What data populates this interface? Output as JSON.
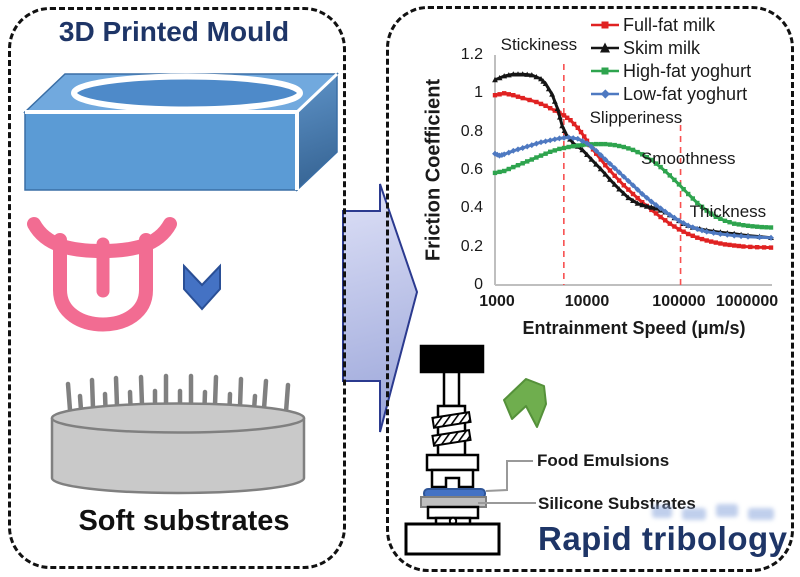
{
  "left_panel": {
    "title": "3D Printed Mould",
    "caption": "Soft substrates"
  },
  "right_panel": {
    "food_label": "Food Emulsions",
    "substrate_label": "Silicone Substrates",
    "caption": "Rapid tribology"
  },
  "icons": {
    "mould": "3d-printed-mould-box",
    "tongue": "tongue-icon",
    "down_chevron": "down-chevron-icon",
    "substrate": "soft-substrate-cylinder",
    "flow_arrow": "right-flow-arrow",
    "tribometer": "tribometer-device",
    "green_arrow": "up-left-green-arrow"
  },
  "colors": {
    "navy_text": "#1e3567",
    "mould_front": "#5b9bd5",
    "mould_top": "#71a9de",
    "tongue_pink": "#f26c92",
    "chevron_blue": "#4472c4",
    "substrate_gray": "#c9c9c9",
    "emulsion_blue": "#4472c4",
    "tray_gray": "#bfbfbf"
  },
  "chart_data": {
    "type": "line",
    "title": "",
    "xlabel": "Entrainment Speed (μm/s)",
    "ylabel": "Friction Coefficient",
    "x_scale": "log",
    "xlim": [
      1000,
      1000000
    ],
    "ylim": [
      0,
      1.2
    ],
    "x_ticks": [
      "1000",
      "10000",
      "100000",
      "1000000"
    ],
    "y_ticks": [
      "0",
      "0.2",
      "0.4",
      "0.6",
      "0.8",
      "1",
      "1.2"
    ],
    "grid": false,
    "legend_position": "top-right",
    "reference_line_color": "#f85050",
    "reference_lines_x": [
      5600,
      104000
    ],
    "annotations": [
      {
        "text": "Stickiness",
        "x": 3000,
        "y": 1.25
      },
      {
        "text": "Slipperiness",
        "x": 34000,
        "y": 0.87
      },
      {
        "text": "Smoothness",
        "x": 126000,
        "y": 0.66
      },
      {
        "text": "Thickness",
        "x": 340000,
        "y": 0.38
      }
    ],
    "series": [
      {
        "name": "Full-fat milk",
        "color": "#e02222",
        "marker": "square",
        "points": [
          [
            1000,
            0.99
          ],
          [
            1260,
            1.0
          ],
          [
            1580,
            0.99
          ],
          [
            2000,
            0.975
          ],
          [
            2820,
            0.955
          ],
          [
            3550,
            0.935
          ],
          [
            4470,
            0.91
          ],
          [
            5620,
            0.885
          ],
          [
            6610,
            0.86
          ],
          [
            7940,
            0.82
          ],
          [
            9330,
            0.775
          ],
          [
            10700,
            0.73
          ],
          [
            12600,
            0.685
          ],
          [
            15800,
            0.625
          ],
          [
            20000,
            0.57
          ],
          [
            25100,
            0.52
          ],
          [
            31600,
            0.475
          ],
          [
            39800,
            0.432
          ],
          [
            50100,
            0.392
          ],
          [
            63100,
            0.355
          ],
          [
            79400,
            0.32
          ],
          [
            100000,
            0.29
          ],
          [
            126000,
            0.266
          ],
          [
            158000,
            0.247
          ],
          [
            200000,
            0.232
          ],
          [
            251000,
            0.221
          ],
          [
            316000,
            0.212
          ],
          [
            398000,
            0.206
          ],
          [
            501000,
            0.201
          ],
          [
            708000,
            0.197
          ],
          [
            1000000,
            0.195
          ]
        ]
      },
      {
        "name": "Skim milk",
        "color": "#151515",
        "marker": "triangle",
        "points": [
          [
            1000,
            1.07
          ],
          [
            1260,
            1.09
          ],
          [
            1580,
            1.1
          ],
          [
            2000,
            1.1
          ],
          [
            2510,
            1.095
          ],
          [
            3160,
            1.075
          ],
          [
            3550,
            1.05
          ],
          [
            4170,
            0.995
          ],
          [
            4790,
            0.92
          ],
          [
            5370,
            0.83
          ],
          [
            6030,
            0.78
          ],
          [
            7080,
            0.74
          ],
          [
            8910,
            0.705
          ],
          [
            11200,
            0.655
          ],
          [
            14100,
            0.605
          ],
          [
            17800,
            0.55
          ],
          [
            22400,
            0.5
          ],
          [
            28200,
            0.455
          ],
          [
            35500,
            0.425
          ],
          [
            44700,
            0.41
          ],
          [
            56200,
            0.4
          ],
          [
            70800,
            0.38
          ],
          [
            89100,
            0.35
          ],
          [
            112000,
            0.32
          ],
          [
            141000,
            0.3
          ],
          [
            200000,
            0.285
          ],
          [
            282000,
            0.275
          ],
          [
            398000,
            0.267
          ],
          [
            562000,
            0.258
          ],
          [
            1000000,
            0.247
          ]
        ]
      },
      {
        "name": "High-fat yoghurt",
        "color": "#2ea44e",
        "marker": "square",
        "points": [
          [
            1000,
            0.585
          ],
          [
            1260,
            0.595
          ],
          [
            1580,
            0.615
          ],
          [
            2000,
            0.635
          ],
          [
            2510,
            0.655
          ],
          [
            3160,
            0.675
          ],
          [
            3980,
            0.695
          ],
          [
            5010,
            0.71
          ],
          [
            6310,
            0.72
          ],
          [
            7940,
            0.728
          ],
          [
            10000,
            0.733
          ],
          [
            12600,
            0.735
          ],
          [
            15800,
            0.735
          ],
          [
            20000,
            0.73
          ],
          [
            25100,
            0.72
          ],
          [
            31600,
            0.705
          ],
          [
            39800,
            0.682
          ],
          [
            50100,
            0.652
          ],
          [
            63100,
            0.615
          ],
          [
            79400,
            0.572
          ],
          [
            100000,
            0.525
          ],
          [
            126000,
            0.475
          ],
          [
            158000,
            0.428
          ],
          [
            200000,
            0.388
          ],
          [
            251000,
            0.356
          ],
          [
            316000,
            0.335
          ],
          [
            398000,
            0.32
          ],
          [
            501000,
            0.312
          ],
          [
            631000,
            0.306
          ],
          [
            794000,
            0.302
          ],
          [
            1000000,
            0.3
          ]
        ]
      },
      {
        "name": "Low-fat yoghurt",
        "color": "#4e79c1",
        "marker": "diamond",
        "points": [
          [
            1000,
            0.685
          ],
          [
            1120,
            0.675
          ],
          [
            1260,
            0.682
          ],
          [
            1580,
            0.7
          ],
          [
            2000,
            0.715
          ],
          [
            2510,
            0.73
          ],
          [
            3160,
            0.745
          ],
          [
            3980,
            0.755
          ],
          [
            5010,
            0.765
          ],
          [
            6310,
            0.77
          ],
          [
            7940,
            0.763
          ],
          [
            10000,
            0.74
          ],
          [
            12600,
            0.7
          ],
          [
            15800,
            0.655
          ],
          [
            20000,
            0.61
          ],
          [
            25100,
            0.565
          ],
          [
            31600,
            0.52
          ],
          [
            39800,
            0.475
          ],
          [
            50100,
            0.435
          ],
          [
            63100,
            0.4
          ],
          [
            79400,
            0.366
          ],
          [
            100000,
            0.336
          ],
          [
            126000,
            0.31
          ],
          [
            158000,
            0.292
          ],
          [
            200000,
            0.278
          ],
          [
            282000,
            0.266
          ],
          [
            398000,
            0.258
          ],
          [
            562000,
            0.252
          ],
          [
            1000000,
            0.246
          ]
        ]
      }
    ]
  }
}
